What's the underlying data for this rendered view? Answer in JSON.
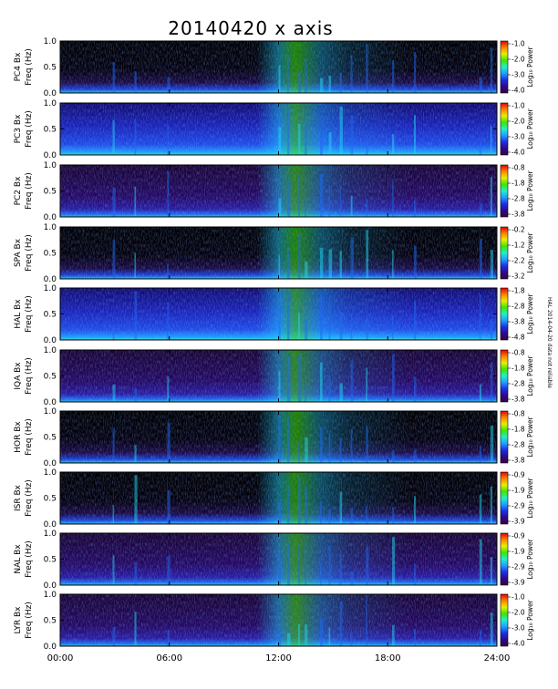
{
  "chart_data": {
    "type": "heatmap",
    "title": "20140420  x axis",
    "xlim": [
      "00:00",
      "24:00"
    ],
    "x_tick_labels": [
      "00:00",
      "06:00",
      "12:00",
      "18:00",
      "24:00"
    ],
    "ylim": [
      0.0,
      1.0
    ],
    "y_tick_labels": [
      "0.0",
      "0.5",
      "1.0"
    ],
    "colorbar_label": "Log₁₀ Power",
    "colormap": [
      "#3a0040",
      "#2d0a8c",
      "#1f2ee6",
      "#1ea0ff",
      "#20f0c8",
      "#3ce600",
      "#e6ef00",
      "#ff8200",
      "#e10000"
    ],
    "side_note": "HAL 2014-04-20 data not reliable",
    "panels": [
      {
        "station": "PC4",
        "ylabel": "PC4  Bx",
        "ylabel2": "Freq (Hz)",
        "cbar_ticks": [
          "-1.0",
          "-2.0",
          "-3.0",
          "-4.0"
        ],
        "background": "black"
      },
      {
        "station": "PC3",
        "ylabel": "PC3  Bx",
        "ylabel2": "Freq (Hz)",
        "cbar_ticks": [
          "-1.0",
          "-2.0",
          "-3.0",
          "-4.0"
        ],
        "background": "blue"
      },
      {
        "station": "PC2",
        "ylabel": "PC2  Bx",
        "ylabel2": "Freq (Hz)",
        "cbar_ticks": [
          "-0.8",
          "-1.8",
          "-2.8",
          "-3.8"
        ],
        "background": "purple"
      },
      {
        "station": "SPA",
        "ylabel": "SPA  Bx",
        "ylabel2": "Freq (Hz)",
        "cbar_ticks": [
          "-0.2",
          "-1.2",
          "-2.2",
          "-3.2"
        ],
        "background": "black"
      },
      {
        "station": "HAL",
        "ylabel": "HAL  Bx",
        "ylabel2": "Freq (Hz)",
        "cbar_ticks": [
          "-1.8",
          "-2.8",
          "-3.8",
          "-4.8"
        ],
        "background": "blue"
      },
      {
        "station": "IQA",
        "ylabel": "IQA  Bx",
        "ylabel2": "Freq (Hz)",
        "cbar_ticks": [
          "-0.8",
          "-1.8",
          "-2.8",
          "-3.8"
        ],
        "background": "purple"
      },
      {
        "station": "HOR",
        "ylabel": "HOR  Bx",
        "ylabel2": "Freq (Hz)",
        "cbar_ticks": [
          "-0.8",
          "-1.8",
          "-2.8",
          "-3.8"
        ],
        "background": "black"
      },
      {
        "station": "ISR",
        "ylabel": "ISR  Bx",
        "ylabel2": "Freq (Hz)",
        "cbar_ticks": [
          "-0.9",
          "-1.9",
          "-2.9",
          "-3.9"
        ],
        "background": "black"
      },
      {
        "station": "NAL",
        "ylabel": "NAL  Bx",
        "ylabel2": "Freq (Hz)",
        "cbar_ticks": [
          "-0.9",
          "-1.9",
          "-2.9",
          "-3.9"
        ],
        "background": "purple"
      },
      {
        "station": "LYR",
        "ylabel": "LYR  Bx",
        "ylabel2": "Freq (Hz)",
        "cbar_ticks": [
          "-1.0",
          "-2.0",
          "-3.0",
          "-4.0"
        ],
        "background": "purple"
      }
    ]
  }
}
